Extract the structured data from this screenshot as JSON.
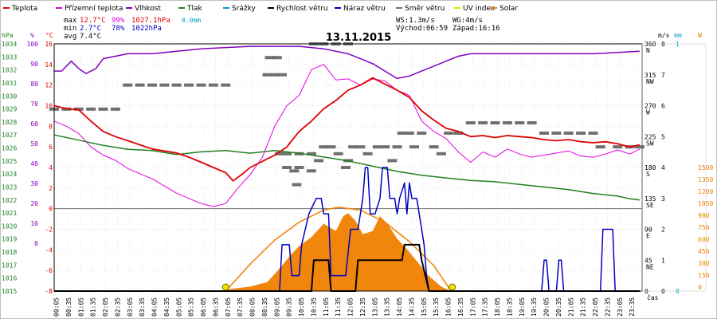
{
  "chart_data": {
    "type": "line",
    "title": "13.11.2015",
    "legend": [
      {
        "name": "Teplota",
        "color": "#e00000"
      },
      {
        "name": "Přízemní teplota",
        "color": "#e000e0"
      },
      {
        "name": "Vlhkost",
        "color": "#8000c0"
      },
      {
        "name": "Tlak",
        "color": "#208020"
      },
      {
        "name": "Srážky",
        "color": "#00a0c0"
      },
      {
        "name": "Rychlost větru",
        "color": "#000000"
      },
      {
        "name": "Náraz větru",
        "color": "#0000c0"
      },
      {
        "name": "Směr větru",
        "color": "#707070"
      },
      {
        "name": "UV index",
        "color": "#e8e000"
      },
      {
        "name": "Solar",
        "color": "#f08000"
      }
    ],
    "stats": {
      "max_label": "max",
      "max_temp": "12.7°C",
      "max_hum": "99%",
      "max_press": "1027.1hPa",
      "max_rain": "0.0mm",
      "min_label": "min",
      "min_temp": "2.7°C",
      "min_hum": "78%",
      "min_press": "1022hPa",
      "avg_label": "avg",
      "avg_temp": "7.4°C",
      "ws": "WS:1.3m/s",
      "wg": "WG:4m/s",
      "sunrise": "Východ:06:59",
      "sunset": "Západ:16:16"
    },
    "axes": {
      "hpa_unit": "hPa",
      "pct_unit": "%",
      "c_unit": "°C",
      "ms_unit": "m/s",
      "mm_unit": "mm",
      "w_unit": "W",
      "time_label": "čas",
      "hpa_ticks": [
        "1034",
        "1033",
        "1032",
        "1031",
        "1030",
        "1029",
        "1028",
        "1027",
        "1026",
        "1025",
        "1024",
        "1023",
        "1022",
        "1021",
        "1020",
        "1019",
        "1018",
        "1017",
        "1016",
        "1015"
      ],
      "pct_ticks": [
        "100",
        "90",
        "80",
        "70",
        "60",
        "50",
        "40",
        "30",
        "20",
        "10",
        "0"
      ],
      "c_ticks": [
        "16",
        "14",
        "12",
        "10",
        "8",
        "6",
        "4",
        "2",
        "0",
        "-2",
        "-4",
        "-6",
        "-8"
      ],
      "deg_ticks": [
        "360",
        "315",
        "270",
        "225",
        "180",
        "135",
        "90",
        "45",
        "0"
      ],
      "dir_ticks": [
        "N",
        "NW",
        "W",
        "SW",
        "S",
        "SE",
        "E",
        "NE",
        ""
      ],
      "ms_ticks": [
        "8",
        "7",
        "6",
        "5",
        "4",
        "3",
        "2",
        "1",
        "0"
      ],
      "mm_ticks": [
        "1",
        "",
        "",
        "",
        "",
        "",
        "",
        "",
        "0"
      ],
      "w_ticks": [
        "1500",
        "1350",
        "1200",
        "1050",
        "900",
        "750",
        "600",
        "450",
        "300",
        "150",
        "0"
      ],
      "time_ticks": [
        "00:05",
        "00:35",
        "01:05",
        "01:35",
        "02:05",
        "02:35",
        "03:05",
        "03:35",
        "04:05",
        "04:35",
        "05:05",
        "05:35",
        "06:05",
        "06:35",
        "07:05",
        "07:35",
        "08:05",
        "08:35",
        "09:05",
        "09:35",
        "10:05",
        "10:35",
        "11:05",
        "11:35",
        "12:05",
        "12:35",
        "13:05",
        "13:35",
        "14:05",
        "14:35",
        "15:05",
        "15:35",
        "16:05",
        "16:35",
        "17:05",
        "17:35",
        "18:05",
        "18:35",
        "19:05",
        "19:35",
        "20:05",
        "20:35",
        "21:05",
        "21:35",
        "22:05",
        "22:35",
        "23:05",
        "23:35"
      ]
    },
    "temperature": [
      [
        0,
        10
      ],
      [
        0.5,
        9.7
      ],
      [
        1,
        9.6
      ],
      [
        1.5,
        8.5
      ],
      [
        2,
        7.5
      ],
      [
        2.5,
        7
      ],
      [
        3,
        6.6
      ],
      [
        3.5,
        6.2
      ],
      [
        4,
        5.8
      ],
      [
        4.5,
        5.6
      ],
      [
        5,
        5.4
      ],
      [
        5.5,
        5
      ],
      [
        6,
        4.5
      ],
      [
        6.5,
        4
      ],
      [
        7,
        3.5
      ],
      [
        7.3,
        2.7
      ],
      [
        7.7,
        3.4
      ],
      [
        8,
        4
      ],
      [
        8.5,
        4.6
      ],
      [
        9,
        5.2
      ],
      [
        9.5,
        6
      ],
      [
        10,
        7.5
      ],
      [
        10.5,
        8.5
      ],
      [
        11,
        9.7
      ],
      [
        11.5,
        10.5
      ],
      [
        12,
        11.5
      ],
      [
        12.5,
        12
      ],
      [
        13,
        12.7
      ],
      [
        13.5,
        12.1
      ],
      [
        14,
        11.5
      ],
      [
        14.5,
        10.8
      ],
      [
        15,
        9.5
      ],
      [
        15.5,
        8.6
      ],
      [
        16,
        7.8
      ],
      [
        16.5,
        7.5
      ],
      [
        17,
        7
      ],
      [
        17.5,
        7.1
      ],
      [
        18,
        6.9
      ],
      [
        18.5,
        7.1
      ],
      [
        19,
        7
      ],
      [
        19.5,
        6.9
      ],
      [
        20,
        6.7
      ],
      [
        20.5,
        6.6
      ],
      [
        21,
        6.7
      ],
      [
        21.5,
        6.5
      ],
      [
        22,
        6.4
      ],
      [
        22.5,
        6.5
      ],
      [
        23,
        6.3
      ],
      [
        23.5,
        6
      ],
      [
        23.9,
        6.2
      ]
    ],
    "ground_temp": [
      [
        0,
        8.5
      ],
      [
        0.5,
        8
      ],
      [
        1,
        7.3
      ],
      [
        1.5,
        6
      ],
      [
        2,
        5.2
      ],
      [
        2.5,
        4.7
      ],
      [
        3,
        3.9
      ],
      [
        3.5,
        3.4
      ],
      [
        4,
        2.9
      ],
      [
        4.5,
        2.2
      ],
      [
        5,
        1.5
      ],
      [
        5.5,
        1
      ],
      [
        6,
        0.5
      ],
      [
        6.5,
        0.2
      ],
      [
        7,
        0.5
      ],
      [
        7.5,
        2
      ],
      [
        8,
        3.3
      ],
      [
        8.5,
        5
      ],
      [
        9,
        8
      ],
      [
        9.5,
        10
      ],
      [
        10,
        11
      ],
      [
        10.5,
        13.5
      ],
      [
        11,
        14
      ],
      [
        11.5,
        12.5
      ],
      [
        12,
        12.6
      ],
      [
        12.5,
        12
      ],
      [
        13,
        12.6
      ],
      [
        13.5,
        12.4
      ],
      [
        14,
        11.5
      ],
      [
        14.5,
        11
      ],
      [
        15,
        8.5
      ],
      [
        15.5,
        7.5
      ],
      [
        16,
        6.8
      ],
      [
        16.5,
        5.5
      ],
      [
        17,
        4.5
      ],
      [
        17.5,
        5.5
      ],
      [
        18,
        5
      ],
      [
        18.5,
        5.8
      ],
      [
        19,
        5.3
      ],
      [
        19.5,
        5
      ],
      [
        20,
        5.2
      ],
      [
        20.5,
        5.4
      ],
      [
        21,
        5.6
      ],
      [
        21.5,
        5.1
      ],
      [
        22,
        5
      ],
      [
        22.5,
        5.3
      ],
      [
        23,
        5.7
      ],
      [
        23.5,
        5.3
      ],
      [
        23.9,
        5.8
      ]
    ],
    "humidity": [
      [
        0,
        89
      ],
      [
        0.3,
        89
      ],
      [
        0.7,
        93
      ],
      [
        1,
        90
      ],
      [
        1.3,
        88
      ],
      [
        1.7,
        90
      ],
      [
        2,
        94
      ],
      [
        2.5,
        95
      ],
      [
        3,
        96
      ],
      [
        4,
        96
      ],
      [
        5,
        97
      ],
      [
        6,
        98
      ],
      [
        7,
        98.5
      ],
      [
        8,
        99
      ],
      [
        9,
        99
      ],
      [
        10,
        99
      ],
      [
        11,
        98
      ],
      [
        12,
        96
      ],
      [
        13,
        92
      ],
      [
        13.5,
        89
      ],
      [
        14,
        86
      ],
      [
        14.5,
        87
      ],
      [
        15,
        89
      ],
      [
        15.5,
        91
      ],
      [
        16,
        93
      ],
      [
        16.5,
        95
      ],
      [
        17,
        96
      ],
      [
        18,
        96
      ],
      [
        19,
        96
      ],
      [
        20,
        96
      ],
      [
        21,
        96
      ],
      [
        22,
        96
      ],
      [
        23,
        96.5
      ],
      [
        23.9,
        97
      ]
    ],
    "pressure": [
      [
        0,
        1027
      ],
      [
        1,
        1026.6
      ],
      [
        2,
        1026.2
      ],
      [
        3,
        1025.9
      ],
      [
        4,
        1025.8
      ],
      [
        5,
        1025.5
      ],
      [
        6,
        1025.7
      ],
      [
        7,
        1025.8
      ],
      [
        8,
        1025.6
      ],
      [
        9,
        1025.8
      ],
      [
        10,
        1025.6
      ],
      [
        11,
        1025.3
      ],
      [
        12,
        1025
      ],
      [
        13,
        1024.6
      ],
      [
        14,
        1024.2
      ],
      [
        15,
        1023.9
      ],
      [
        16,
        1023.7
      ],
      [
        17,
        1023.5
      ],
      [
        18,
        1023.4
      ],
      [
        19,
        1023.2
      ],
      [
        20,
        1023
      ],
      [
        21,
        1022.8
      ],
      [
        22,
        1022.5
      ],
      [
        23,
        1022.3
      ],
      [
        23.5,
        1022.1
      ],
      [
        23.9,
        1022
      ]
    ],
    "wind_speed": [
      [
        0,
        0
      ],
      [
        10.5,
        0
      ],
      [
        10.6,
        1
      ],
      [
        11.2,
        1
      ],
      [
        11.3,
        0
      ],
      [
        12.3,
        0
      ],
      [
        12.4,
        1
      ],
      [
        14.2,
        1
      ],
      [
        14.3,
        1.5
      ],
      [
        14.9,
        1.5
      ],
      [
        15,
        1
      ],
      [
        15.3,
        0
      ],
      [
        23.9,
        0
      ]
    ],
    "wind_gust": [
      [
        0,
        0
      ],
      [
        9.2,
        0
      ],
      [
        9.3,
        1.5
      ],
      [
        9.6,
        1.5
      ],
      [
        9.7,
        0.5
      ],
      [
        10,
        0.5
      ],
      [
        10.1,
        1.5
      ],
      [
        10.4,
        2.5
      ],
      [
        10.7,
        3
      ],
      [
        10.9,
        3
      ],
      [
        11,
        2.5
      ],
      [
        11.2,
        2.5
      ],
      [
        11.3,
        0.5
      ],
      [
        11.9,
        0.5
      ],
      [
        12.1,
        2
      ],
      [
        12.4,
        2
      ],
      [
        12.6,
        3
      ],
      [
        12.7,
        4
      ],
      [
        12.8,
        4
      ],
      [
        12.9,
        2.5
      ],
      [
        13.1,
        2.5
      ],
      [
        13.3,
        3
      ],
      [
        13.4,
        4
      ],
      [
        13.6,
        4
      ],
      [
        13.7,
        3
      ],
      [
        13.9,
        3
      ],
      [
        14,
        2.5
      ],
      [
        14.1,
        3
      ],
      [
        14.3,
        3.5
      ],
      [
        14.4,
        2.5
      ],
      [
        14.5,
        3.5
      ],
      [
        14.6,
        3
      ],
      [
        14.8,
        3
      ],
      [
        15,
        2
      ],
      [
        15.1,
        1.5
      ],
      [
        15.2,
        0.5
      ],
      [
        15.3,
        0
      ],
      [
        19.9,
        0
      ],
      [
        20,
        1
      ],
      [
        20.1,
        1
      ],
      [
        20.2,
        0
      ],
      [
        20.5,
        0
      ],
      [
        20.6,
        1
      ],
      [
        20.7,
        1
      ],
      [
        20.8,
        0
      ],
      [
        22.3,
        0
      ],
      [
        22.4,
        2
      ],
      [
        22.8,
        2
      ],
      [
        22.9,
        0
      ],
      [
        23.9,
        0
      ]
    ],
    "wind_dir": [
      [
        0,
        265
      ],
      [
        0.5,
        265
      ],
      [
        1,
        265
      ],
      [
        1.5,
        265
      ],
      [
        2,
        265
      ],
      [
        2.5,
        265
      ],
      [
        3,
        300
      ],
      [
        3.5,
        300
      ],
      [
        4,
        300
      ],
      [
        4.5,
        300
      ],
      [
        5,
        300
      ],
      [
        5.5,
        300
      ],
      [
        6,
        300
      ],
      [
        6.5,
        300
      ],
      [
        7,
        300
      ],
      [
        9.2,
        200
      ],
      [
        9.5,
        200
      ],
      [
        10,
        200
      ],
      [
        10.5,
        200
      ],
      [
        9.5,
        180
      ],
      [
        10,
        180
      ],
      [
        10.6,
        360
      ],
      [
        11,
        360
      ],
      [
        11.5,
        360
      ],
      [
        12,
        360
      ],
      [
        9.8,
        175
      ],
      [
        9.9,
        155
      ],
      [
        10.5,
        175
      ],
      [
        10.8,
        190
      ],
      [
        11,
        210
      ],
      [
        11.3,
        210
      ],
      [
        11.6,
        200
      ],
      [
        11.9,
        180
      ],
      [
        12,
        190
      ],
      [
        12.2,
        210
      ],
      [
        12.5,
        210
      ],
      [
        12.8,
        200
      ],
      [
        13.2,
        210
      ],
      [
        13.5,
        210
      ],
      [
        13.8,
        190
      ],
      [
        14,
        210
      ],
      [
        14.2,
        230
      ],
      [
        14.5,
        230
      ],
      [
        14.7,
        210
      ],
      [
        15,
        230
      ],
      [
        15.5,
        210
      ],
      [
        15.8,
        200
      ],
      [
        16.1,
        230
      ],
      [
        16.5,
        230
      ],
      [
        17,
        245
      ],
      [
        17.5,
        245
      ],
      [
        18,
        245
      ],
      [
        18.5,
        245
      ],
      [
        19,
        245
      ],
      [
        19.5,
        245
      ],
      [
        20,
        230
      ],
      [
        20.5,
        230
      ],
      [
        21,
        230
      ],
      [
        21.5,
        230
      ],
      [
        22,
        230
      ],
      [
        22.3,
        210
      ],
      [
        23,
        210
      ],
      [
        23.5,
        210
      ],
      [
        23.9,
        210
      ],
      [
        8.8,
        340
      ],
      [
        9.1,
        340
      ],
      [
        8.7,
        315
      ],
      [
        9,
        315
      ],
      [
        9.3,
        315
      ]
    ],
    "solar": [
      [
        0,
        0
      ],
      [
        6.9,
        0
      ],
      [
        7,
        10
      ],
      [
        8,
        30
      ],
      [
        8.7,
        60
      ],
      [
        9.2,
        150
      ],
      [
        9.7,
        250
      ],
      [
        10,
        300
      ],
      [
        10.5,
        360
      ],
      [
        11,
        450
      ],
      [
        11.5,
        400
      ],
      [
        11.8,
        500
      ],
      [
        12,
        520
      ],
      [
        12.3,
        470
      ],
      [
        12.6,
        380
      ],
      [
        13,
        400
      ],
      [
        13.3,
        500
      ],
      [
        13.6,
        450
      ],
      [
        14,
        350
      ],
      [
        14.4,
        280
      ],
      [
        14.8,
        200
      ],
      [
        15.3,
        100
      ],
      [
        15.8,
        30
      ],
      [
        16.2,
        0
      ],
      [
        23.9,
        0
      ]
    ],
    "solar_theory": [
      [
        7,
        0
      ],
      [
        8,
        180
      ],
      [
        9,
        340
      ],
      [
        10,
        460
      ],
      [
        11,
        540
      ],
      [
        11.6,
        560
      ],
      [
        12.5,
        540
      ],
      [
        13.5,
        460
      ],
      [
        14.5,
        330
      ],
      [
        15.5,
        170
      ],
      [
        16.2,
        0
      ]
    ],
    "sun_markers": [
      7,
      16.25
    ]
  }
}
